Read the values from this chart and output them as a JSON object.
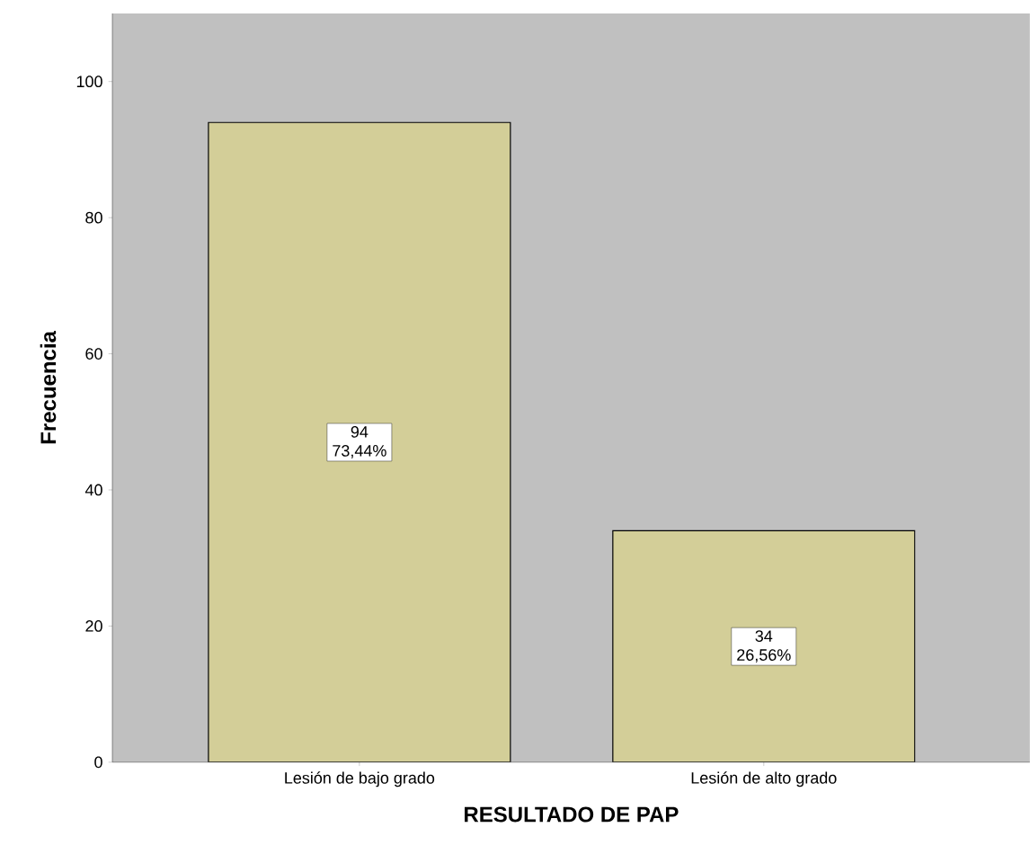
{
  "chart_data": {
    "type": "bar",
    "xlabel": "RESULTADO DE PAP",
    "ylabel": "Frecuencia",
    "categories": [
      "Lesión de bajo grado",
      "Lesión de alto grado"
    ],
    "values": [
      94,
      34
    ],
    "value_labels": [
      "94 73,44%",
      "34 26,56%"
    ],
    "color": "#d3ce98",
    "ylim": [
      0,
      110
    ],
    "yticks": [
      0,
      20,
      40,
      60,
      80,
      100
    ],
    "grid": false
  }
}
